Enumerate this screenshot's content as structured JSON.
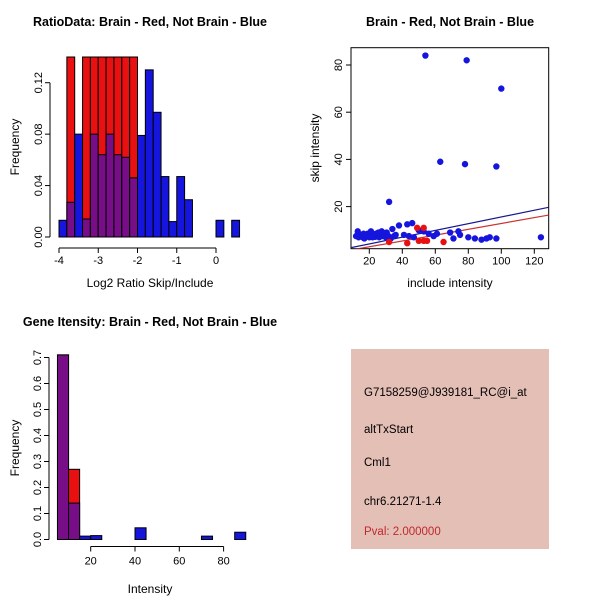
{
  "colors": {
    "brain_red": "#E81010",
    "not_brain_blue": "#1515DD",
    "overlap_purple": "#770E87",
    "fit_line_blue": "#18188F",
    "fit_line_red": "#CC3333",
    "axis_black": "#000000",
    "info_box_bg": "#E4BFB6",
    "pval_red": "#C0282D"
  },
  "chart_data": [
    {
      "type": "bar",
      "title": "RatioData: Brain - Red, Not Brain - Blue",
      "xlabel": "Log2 Ratio Skip/Include",
      "ylabel": "Frequency",
      "xlim": [
        -4.2,
        0.8
      ],
      "ylim": [
        0,
        0.14
      ],
      "bin_width": 0.2,
      "x_tick_values": [
        -4,
        -3,
        -2,
        -1,
        0
      ],
      "x_tick_labels": [
        "-4",
        "-3",
        "-2",
        "-1",
        "0"
      ],
      "y_tick_values": [
        0,
        0.04,
        0.08,
        0.12
      ],
      "y_tick_labels": [
        "0.00",
        "0.04",
        "0.08",
        "0.12"
      ],
      "note": "red bars exceed ylim and are clipped at 0.14; purple = red/blue overlap",
      "bins": [
        {
          "start": -4.0,
          "blue": 0.013,
          "red": 0
        },
        {
          "start": -3.8,
          "blue": 0.027,
          "red": 0.15
        },
        {
          "start": -3.6,
          "blue": 0.08,
          "red": 0
        },
        {
          "start": -3.4,
          "blue": 0.014,
          "red": 0.15
        },
        {
          "start": -3.2,
          "blue": 0.08,
          "red": 0.15
        },
        {
          "start": -3.0,
          "blue": 0.064,
          "red": 0.15
        },
        {
          "start": -2.8,
          "blue": 0.08,
          "red": 0.15
        },
        {
          "start": -2.6,
          "blue": 0.064,
          "red": 0.15
        },
        {
          "start": -2.4,
          "blue": 0.062,
          "red": 0.15
        },
        {
          "start": -2.2,
          "blue": 0.046,
          "red": 0.15
        },
        {
          "start": -2.0,
          "blue": 0.079,
          "red": 0
        },
        {
          "start": -1.8,
          "blue": 0.13,
          "red": 0
        },
        {
          "start": -1.6,
          "blue": 0.097,
          "red": 0
        },
        {
          "start": -1.4,
          "blue": 0.047,
          "red": 0
        },
        {
          "start": -1.2,
          "blue": 0.012,
          "red": 0
        },
        {
          "start": -1.0,
          "blue": 0.047,
          "red": 0
        },
        {
          "start": -0.8,
          "blue": 0.029,
          "red": 0
        },
        {
          "start": 0.0,
          "blue": 0.013,
          "red": 0
        },
        {
          "start": 0.4,
          "blue": 0.013,
          "red": 0
        }
      ]
    },
    {
      "type": "scatter",
      "title": "Brain - Red, Not Brain - Blue",
      "xlabel": "include intensity",
      "ylabel": "skip intensity",
      "xlim": [
        8.9,
        128.7
      ],
      "ylim": [
        2.2,
        87.3
      ],
      "x_tick_values": [
        20,
        40,
        60,
        80,
        100,
        120
      ],
      "x_tick_labels": [
        "20",
        "40",
        "60",
        "80",
        "100",
        "120"
      ],
      "y_tick_values": [
        20,
        40,
        60,
        80
      ],
      "y_tick_labels": [
        "20",
        "40",
        "60",
        "80"
      ],
      "blue_points": [
        [
          12,
          7.5
        ],
        [
          13,
          9.5
        ],
        [
          13.5,
          7
        ],
        [
          15,
          8
        ],
        [
          16,
          7
        ],
        [
          16.5,
          8.5
        ],
        [
          17,
          6.5
        ],
        [
          18,
          7.5
        ],
        [
          19,
          8.5
        ],
        [
          20,
          7
        ],
        [
          20.5,
          8
        ],
        [
          21,
          9.5
        ],
        [
          22,
          7
        ],
        [
          23,
          8
        ],
        [
          23.5,
          7.2
        ],
        [
          24,
          8.5
        ],
        [
          25,
          7.5
        ],
        [
          25.5,
          9
        ],
        [
          26,
          7
        ],
        [
          27,
          8
        ],
        [
          27.5,
          9.5
        ],
        [
          28,
          7.5
        ],
        [
          29,
          8
        ],
        [
          30,
          7
        ],
        [
          30.5,
          9
        ],
        [
          31,
          8
        ],
        [
          32,
          7.2
        ],
        [
          32,
          22
        ],
        [
          33,
          6.5
        ],
        [
          34,
          10.5
        ],
        [
          35,
          7.5
        ],
        [
          36,
          8
        ],
        [
          38,
          12
        ],
        [
          41,
          8
        ],
        [
          43,
          12.5
        ],
        [
          44,
          7.5
        ],
        [
          46,
          13
        ],
        [
          47,
          7
        ],
        [
          50,
          10
        ],
        [
          53,
          9.5
        ],
        [
          54,
          84
        ],
        [
          56,
          8.5
        ],
        [
          59,
          7.5
        ],
        [
          61,
          8.5
        ],
        [
          63,
          39
        ],
        [
          69,
          9
        ],
        [
          71,
          6.5
        ],
        [
          74,
          9.5
        ],
        [
          75,
          8
        ],
        [
          78,
          38
        ],
        [
          79,
          82
        ],
        [
          80,
          7
        ],
        [
          84,
          6.5
        ],
        [
          88,
          6
        ],
        [
          91,
          6.5
        ],
        [
          93,
          7
        ],
        [
          97,
          6.5
        ],
        [
          97,
          37
        ],
        [
          100,
          70
        ],
        [
          124,
          7
        ]
      ],
      "red_points": [
        [
          32,
          5
        ],
        [
          43,
          4.5
        ],
        [
          49,
          11
        ],
        [
          53,
          11
        ],
        [
          50,
          5.5
        ],
        [
          53,
          5.5
        ],
        [
          55,
          5.5
        ],
        [
          65,
          5
        ]
      ],
      "lines": [
        {
          "color_key": "fit_line_blue",
          "x1": 8.9,
          "y1": 2.6,
          "x2": 128.7,
          "y2": 19.7
        },
        {
          "color_key": "fit_line_red",
          "x1": 8.9,
          "y1": 1.6,
          "x2": 128.7,
          "y2": 16.4
        }
      ]
    },
    {
      "type": "bar",
      "title": "Gene Itensity: Brain - Red, Not Brain - Blue",
      "xlabel": "Intensity",
      "ylabel": "Frequency",
      "xlim": [
        2,
        92
      ],
      "ylim": [
        0,
        0.72
      ],
      "bin_width": 5,
      "x_tick_values": [
        20,
        40,
        60,
        80
      ],
      "x_tick_labels": [
        "20",
        "40",
        "60",
        "80"
      ],
      "y_tick_values": [
        0,
        0.1,
        0.2,
        0.3,
        0.4,
        0.5,
        0.6,
        0.7
      ],
      "y_tick_labels": [
        "0.0",
        "0.1",
        "0.2",
        "0.3",
        "0.4",
        "0.5",
        "0.6",
        "0.7"
      ],
      "note": "purple = red/blue overlap",
      "bins": [
        {
          "start": 5,
          "blue": 0.71,
          "red": 0.71
        },
        {
          "start": 10,
          "blue": 0.14,
          "red": 0.27
        },
        {
          "start": 15,
          "blue": 0.013,
          "red": 0
        },
        {
          "start": 20,
          "blue": 0.015,
          "red": 0
        },
        {
          "start": 40,
          "blue": 0.045,
          "red": 0
        },
        {
          "start": 70,
          "blue": 0.013,
          "red": 0
        },
        {
          "start": 85,
          "blue": 0.028,
          "red": 0
        }
      ]
    }
  ],
  "info_panel": {
    "probe_id": "G7158259@J939181_RC@i_at",
    "event_type": "altTxStart",
    "gene": "Cml1",
    "locus": "chr6.21271-1.4",
    "pval": "Pval: 2.000000"
  }
}
